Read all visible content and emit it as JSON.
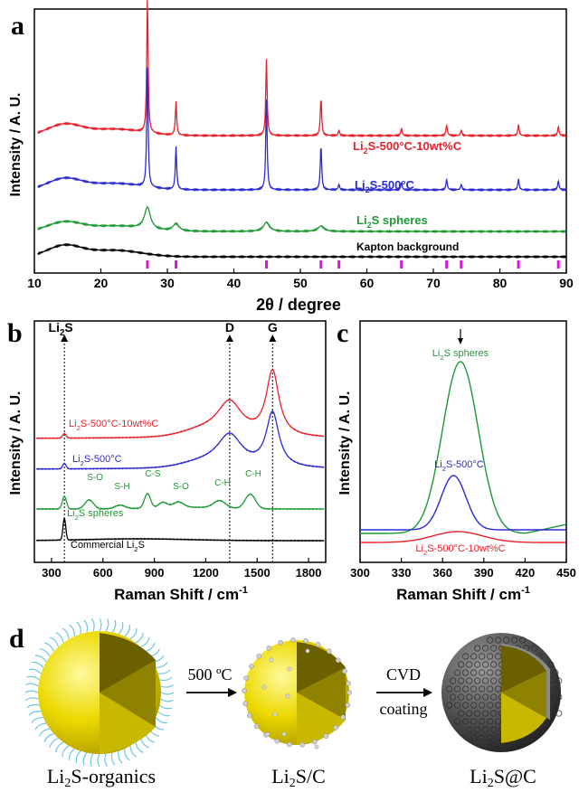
{
  "panels": {
    "a": {
      "letter": "a",
      "xlabel": "2θ / degree",
      "ylabel": "Intensity / A. U.",
      "xticks": [
        10,
        20,
        30,
        40,
        50,
        60,
        70,
        80,
        90
      ],
      "xlim": [
        10,
        90
      ],
      "series": [
        {
          "name": "Li2S-500°C-10wt%C",
          "label_main": "Li",
          "label_sub": "2",
          "label_rest": "S-500°C-10wt%C",
          "color": "#e8212a",
          "baseline": 150,
          "hump": 12,
          "peaks": [
            [
              27.0,
              150
            ],
            [
              31.3,
              38
            ],
            [
              44.9,
              85
            ],
            [
              53.1,
              42
            ],
            [
              55.8,
              6
            ],
            [
              65.2,
              8
            ],
            [
              72.0,
              12
            ],
            [
              74.2,
              6
            ],
            [
              82.8,
              12
            ],
            [
              88.8,
              10
            ]
          ]
        },
        {
          "name": "Li2S-500°C",
          "label_main": "Li",
          "label_sub": "2",
          "label_rest": "S-500°C",
          "color": "#2b2bd0",
          "baseline": 210,
          "hump": 12,
          "peaks": [
            [
              27.0,
              135
            ],
            [
              31.3,
              48
            ],
            [
              44.9,
              100
            ],
            [
              53.1,
              50
            ],
            [
              55.8,
              6
            ],
            [
              65.2,
              8
            ],
            [
              72.0,
              12
            ],
            [
              74.2,
              6
            ],
            [
              82.8,
              12
            ],
            [
              88.8,
              10
            ]
          ]
        },
        {
          "name": "Li2S spheres",
          "label_main": "Li",
          "label_sub": "2",
          "label_rest": "S spheres",
          "color": "#1e9a34",
          "baseline": 256,
          "hump": 10,
          "peaks": [
            [
              27.0,
              24
            ],
            [
              31.3,
              8
            ],
            [
              44.9,
              10
            ],
            [
              53.1,
              6
            ]
          ],
          "broad": true
        },
        {
          "name": "Kapton background",
          "label_main": "Kapton background",
          "label_sub": "",
          "label_rest": "",
          "color": "#000000",
          "baseline": 284,
          "hump": 12,
          "peaks": []
        }
      ],
      "reference_ticks": [
        27.0,
        31.3,
        44.9,
        53.1,
        55.8,
        65.2,
        72.0,
        74.2,
        82.8,
        88.8
      ],
      "reference_color": "#d914d9"
    },
    "b": {
      "letter": "b",
      "xlabel": "Raman Shift / cm",
      "xlabel_sup": "-1",
      "ylabel": "Intensity / A. U.",
      "xticks": [
        300,
        600,
        900,
        1200,
        1500,
        1800
      ],
      "xlim": [
        200,
        1900
      ],
      "markers": [
        {
          "label": "Li2S",
          "main": "Li",
          "sub": "2",
          "rest": "S",
          "x": 375
        },
        {
          "label": "D",
          "main": "D",
          "sub": "",
          "rest": "",
          "x": 1340
        },
        {
          "label": "G",
          "main": "G",
          "sub": "",
          "rest": "",
          "x": 1590
        }
      ],
      "series": [
        {
          "name": "Li2S-500°C-10wt%C",
          "main": "Li",
          "sub": "2",
          "rest": "S-500°C-10wt%C",
          "color": "#e8212a"
        },
        {
          "name": "Li2S-500°C",
          "main": "Li",
          "sub": "2",
          "rest": "S-500°C",
          "color": "#2b2bd0"
        },
        {
          "name": "Li2S spheres",
          "main": "Li",
          "sub": "2",
          "rest": "S spheres",
          "color": "#1e9a34"
        },
        {
          "name": "Commercial Li2S",
          "main": "Commercial Li",
          "sub": "2",
          "rest": "S",
          "color": "#000000"
        }
      ],
      "annotations": [
        "S-O",
        "S-H",
        "C-S",
        "S-O",
        "C-H",
        "C-H"
      ]
    },
    "c": {
      "letter": "c",
      "xlabel": "Raman Shift / cm",
      "xlabel_sup": "-1",
      "ylabel": "Intensity / A. U.",
      "xticks": [
        300,
        330,
        360,
        390,
        420,
        450
      ],
      "xlim": [
        300,
        450
      ],
      "series": [
        {
          "name": "Li2S spheres",
          "main": "Li",
          "sub": "2",
          "rest": "S spheres",
          "color": "#1e9a34"
        },
        {
          "name": "Li2S-500°C",
          "main": "Li",
          "sub": "2",
          "rest": "S-500°C",
          "color": "#2b2bd0"
        },
        {
          "name": "Li2S-500°C-10wt%C",
          "main": "Li",
          "sub": "2",
          "rest": "S-500°C-10wt%C",
          "color": "#e8212a"
        }
      ]
    },
    "d": {
      "letter": "d",
      "step1": "500 ºC",
      "step2_line1": "CVD",
      "step2_line2": "coating",
      "labels": [
        {
          "main": "Li",
          "sub": "2",
          "rest": "S-organics"
        },
        {
          "main": "Li",
          "sub": "2",
          "rest": "S/C"
        },
        {
          "main": "Li",
          "sub": "2",
          "rest": "S@C"
        }
      ]
    }
  },
  "chart_data": [
    {
      "type": "line",
      "title": "",
      "xlabel": "2θ / degree",
      "ylabel": "Intensity / A. U.",
      "xlim": [
        10,
        90
      ],
      "series": [
        {
          "name": "Li2S-500°C-10wt%C",
          "peak_positions": [
            27.0,
            31.3,
            44.9,
            53.1,
            55.8,
            65.2,
            72.0,
            74.2,
            82.8,
            88.8
          ]
        },
        {
          "name": "Li2S-500°C",
          "peak_positions": [
            27.0,
            31.3,
            44.9,
            53.1,
            55.8,
            65.2,
            72.0,
            74.2,
            82.8,
            88.8
          ]
        },
        {
          "name": "Li2S spheres",
          "peak_positions": [
            27.0,
            31.3,
            44.9,
            53.1
          ]
        },
        {
          "name": "Kapton background",
          "peak_positions": []
        }
      ]
    },
    {
      "type": "line",
      "title": "",
      "xlabel": "Raman Shift / cm-1",
      "ylabel": "Intensity / A. U.",
      "xlim": [
        200,
        1900
      ],
      "series": [
        {
          "name": "Li2S-500°C-10wt%C",
          "peak_positions": [
            375,
            1340,
            1590
          ]
        },
        {
          "name": "Li2S-500°C",
          "peak_positions": [
            375,
            1340,
            1590
          ]
        },
        {
          "name": "Li2S spheres",
          "peak_positions": [
            375,
            520,
            700,
            860,
            1040,
            1280,
            1460
          ]
        },
        {
          "name": "Commercial Li2S",
          "peak_positions": [
            375
          ]
        }
      ]
    },
    {
      "type": "line",
      "title": "",
      "xlabel": "Raman Shift / cm-1",
      "ylabel": "Intensity / A. U.",
      "xlim": [
        300,
        450
      ],
      "series": [
        {
          "name": "Li2S spheres",
          "peak_positions": [
            373
          ]
        },
        {
          "name": "Li2S-500°C",
          "peak_positions": [
            368
          ]
        },
        {
          "name": "Li2S-500°C-10wt%C",
          "peak_positions": [
            372
          ]
        }
      ]
    }
  ]
}
